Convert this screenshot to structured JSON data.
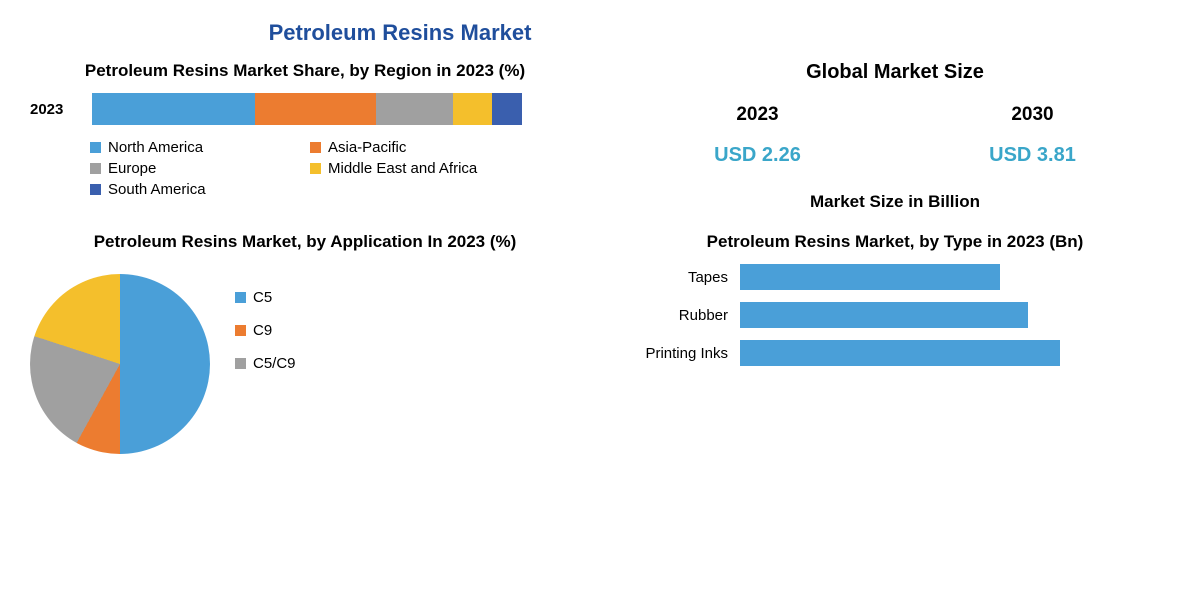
{
  "main_title": {
    "text": "Petroleum Resins Market",
    "color": "#1f4e9c",
    "fontsize": 22
  },
  "region_chart": {
    "type": "stacked-bar",
    "title": "Petroleum Resins Market Share, by Region in 2023 (%)",
    "title_color": "#000000",
    "title_fontsize": 17,
    "year_label": "2023",
    "max_width_pct": 100,
    "segments": [
      {
        "label": "North America",
        "value": 38,
        "color": "#4a9fd8"
      },
      {
        "label": "Asia-Pacific",
        "value": 28,
        "color": "#ec7c30"
      },
      {
        "label": "Europe",
        "value": 18,
        "color": "#a0a0a0"
      },
      {
        "label": "Middle East and Africa",
        "value": 9,
        "color": "#f4bf2c"
      },
      {
        "label": "South America",
        "value": 7,
        "color": "#3a5fae"
      }
    ],
    "legend_fontsize": 15
  },
  "market_size": {
    "title": "Global Market Size",
    "title_fontsize": 20,
    "unit_label": "Market Size in Billion",
    "unit_fontsize": 17,
    "points": [
      {
        "year": "2023",
        "value": "USD 2.26",
        "value_color": "#3aa6c9"
      },
      {
        "year": "2030",
        "value": "USD 3.81",
        "value_color": "#3aa6c9"
      }
    ]
  },
  "pie_chart": {
    "type": "pie",
    "title": "Petroleum Resins Market, by Application In 2023 (%)",
    "title_fontsize": 17,
    "slices": [
      {
        "label": "C5",
        "value": 50,
        "color": "#4a9fd8"
      },
      {
        "label": "C9",
        "value": 8,
        "color": "#ec7c30"
      },
      {
        "label": "C5/C9",
        "value": 22,
        "color": "#a0a0a0"
      },
      {
        "label": "",
        "value": 20,
        "color": "#f4bf2c"
      }
    ],
    "legend_fontsize": 15
  },
  "type_chart": {
    "type": "bar",
    "orientation": "horizontal",
    "title": "Petroleum Resins Market, by Type in 2023 (Bn)",
    "title_fontsize": 17,
    "bar_color": "#4a9fd8",
    "max_value": 1.0,
    "bars": [
      {
        "label": "Tapes",
        "value": 0.65
      },
      {
        "label": "Rubber",
        "value": 0.72
      },
      {
        "label": "Printing Inks",
        "value": 0.8
      }
    ],
    "label_fontsize": 15
  }
}
